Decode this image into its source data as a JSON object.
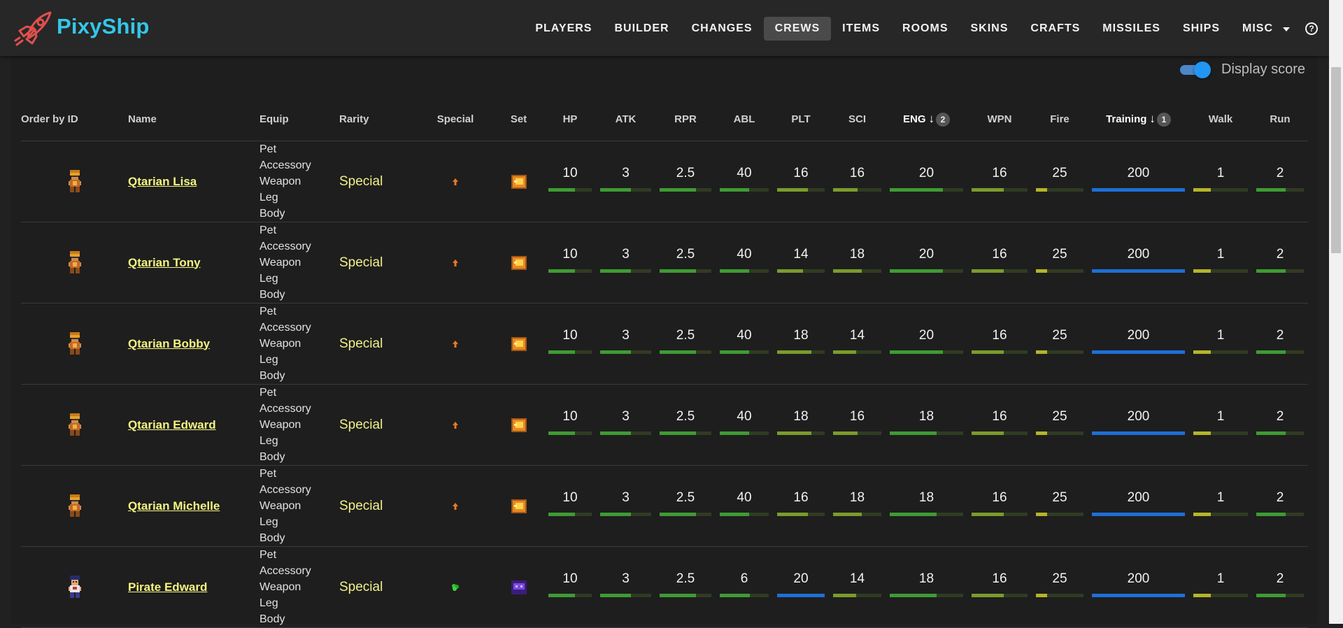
{
  "brand": {
    "name": "PixyShip"
  },
  "nav": {
    "items": [
      "PLAYERS",
      "BUILDER",
      "CHANGES",
      "CREWS",
      "ITEMS",
      "ROOMS",
      "SKINS",
      "CRAFTS",
      "MISSILES",
      "SHIPS"
    ],
    "active": "CREWS",
    "misc": "MISC",
    "help": "?"
  },
  "toggle": {
    "label": "Display score",
    "on": true
  },
  "colors": {
    "green": "#3f9b34",
    "olive": "#7a9c2c",
    "yellow": "#b5b52a",
    "blue": "#1e6fd6",
    "track": "#303b23"
  },
  "table": {
    "headers": {
      "order": "Order by ID",
      "name": "Name",
      "equip": "Equip",
      "rarity": "Rarity",
      "special": "Special",
      "set": "Set",
      "hp": "HP",
      "atk": "ATK",
      "rpr": "RPR",
      "abl": "ABL",
      "plt": "PLT",
      "sci": "SCI",
      "eng": "ENG",
      "wpn": "WPN",
      "fire": "Fire",
      "training": "Training",
      "walk": "Walk",
      "run": "Run"
    },
    "sort": {
      "eng_badge": "2",
      "training_badge": "1"
    },
    "equip_slots": [
      "Pet",
      "Accessory",
      "Weapon",
      "Leg",
      "Body"
    ],
    "rows": [
      {
        "name": "Qtarian Lisa",
        "rarity": "Special",
        "special_icon": "arrow-up-icon",
        "set_icon": "gold-set-icon",
        "stats": {
          "hp": "10",
          "atk": "3",
          "rpr": "2.5",
          "abl": "40",
          "plt": "16",
          "sci": "16",
          "eng": "20",
          "wpn": "16",
          "fire": "25",
          "training": "200",
          "walk": "1",
          "run": "2"
        },
        "scores": {
          "hp": 0.62,
          "atk": 0.6,
          "rpr": 0.7,
          "abl": 0.6,
          "plt": 0.64,
          "sci": 0.5,
          "eng": 0.72,
          "wpn": 0.58,
          "fire": 0.24,
          "training": 1.0,
          "walk": 0.32,
          "run": 0.62
        }
      },
      {
        "name": "Qtarian Tony",
        "rarity": "Special",
        "special_icon": "arrow-up-icon",
        "set_icon": "gold-set-icon",
        "stats": {
          "hp": "10",
          "atk": "3",
          "rpr": "2.5",
          "abl": "40",
          "plt": "14",
          "sci": "18",
          "eng": "20",
          "wpn": "16",
          "fire": "25",
          "training": "200",
          "walk": "1",
          "run": "2"
        },
        "scores": {
          "hp": 0.62,
          "atk": 0.6,
          "rpr": 0.7,
          "abl": 0.6,
          "plt": 0.55,
          "sci": 0.6,
          "eng": 0.72,
          "wpn": 0.58,
          "fire": 0.24,
          "training": 1.0,
          "walk": 0.32,
          "run": 0.62
        }
      },
      {
        "name": "Qtarian Bobby",
        "rarity": "Special",
        "special_icon": "arrow-up-icon",
        "set_icon": "gold-set-icon",
        "stats": {
          "hp": "10",
          "atk": "3",
          "rpr": "2.5",
          "abl": "40",
          "plt": "18",
          "sci": "14",
          "eng": "20",
          "wpn": "16",
          "fire": "25",
          "training": "200",
          "walk": "1",
          "run": "2"
        },
        "scores": {
          "hp": 0.62,
          "atk": 0.6,
          "rpr": 0.7,
          "abl": 0.6,
          "plt": 0.72,
          "sci": 0.48,
          "eng": 0.72,
          "wpn": 0.58,
          "fire": 0.24,
          "training": 1.0,
          "walk": 0.32,
          "run": 0.62
        }
      },
      {
        "name": "Qtarian Edward",
        "rarity": "Special",
        "special_icon": "arrow-up-icon",
        "set_icon": "gold-set-icon",
        "stats": {
          "hp": "10",
          "atk": "3",
          "rpr": "2.5",
          "abl": "40",
          "plt": "18",
          "sci": "16",
          "eng": "18",
          "wpn": "16",
          "fire": "25",
          "training": "200",
          "walk": "1",
          "run": "2"
        },
        "scores": {
          "hp": 0.62,
          "atk": 0.6,
          "rpr": 0.7,
          "abl": 0.6,
          "plt": 0.72,
          "sci": 0.5,
          "eng": 0.64,
          "wpn": 0.58,
          "fire": 0.24,
          "training": 1.0,
          "walk": 0.32,
          "run": 0.62
        }
      },
      {
        "name": "Qtarian Michelle",
        "rarity": "Special",
        "special_icon": "arrow-up-icon",
        "set_icon": "gold-set-icon",
        "stats": {
          "hp": "10",
          "atk": "3",
          "rpr": "2.5",
          "abl": "40",
          "plt": "16",
          "sci": "18",
          "eng": "18",
          "wpn": "16",
          "fire": "25",
          "training": "200",
          "walk": "1",
          "run": "2"
        },
        "scores": {
          "hp": 0.62,
          "atk": 0.6,
          "rpr": 0.7,
          "abl": 0.6,
          "plt": 0.64,
          "sci": 0.6,
          "eng": 0.64,
          "wpn": 0.58,
          "fire": 0.24,
          "training": 1.0,
          "walk": 0.32,
          "run": 0.62
        }
      },
      {
        "name": "Pirate Edward",
        "rarity": "Special",
        "special_icon": "clover-icon",
        "set_icon": "purple-set-icon",
        "stats": {
          "hp": "10",
          "atk": "3",
          "rpr": "2.5",
          "abl": "6",
          "plt": "20",
          "sci": "14",
          "eng": "18",
          "wpn": "16",
          "fire": "25",
          "training": "200",
          "walk": "1",
          "run": "2"
        },
        "scores": {
          "hp": 0.62,
          "atk": 0.6,
          "rpr": 0.7,
          "abl": 0.62,
          "plt": 1.0,
          "sci": 0.48,
          "eng": 0.64,
          "wpn": 0.58,
          "fire": 0.24,
          "training": 1.0,
          "walk": 0.32,
          "run": 0.62
        }
      }
    ]
  }
}
